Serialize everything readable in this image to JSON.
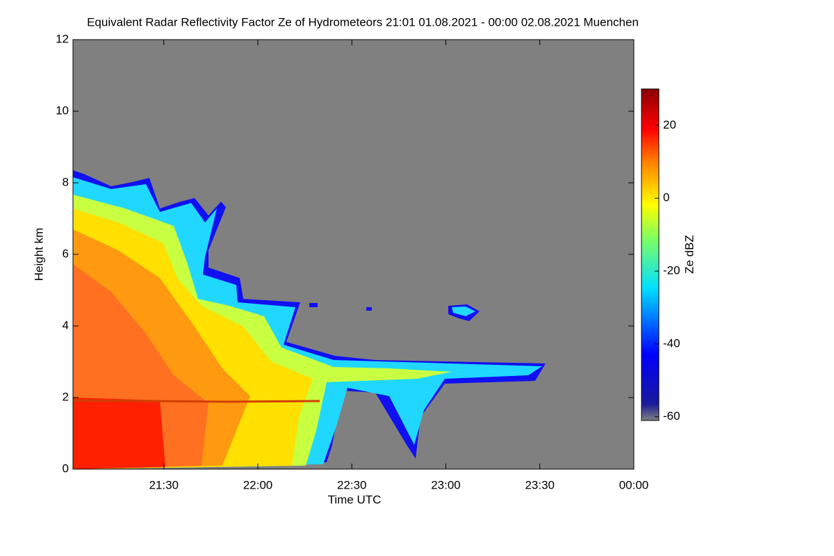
{
  "chart_data": {
    "type": "heatmap",
    "title": "Equivalent Radar Reflectivity Factor Ze of Hydrometeors   21:01 01.08.2021 - 00:00 02.08.2021 Muenchen",
    "xlabel": "Time UTC",
    "ylabel": "Height km",
    "colorbar_label": "Ze dBZ",
    "xlim": [
      1261,
      1440
    ],
    "xticks": [
      {
        "value": 1290,
        "label": "21:30"
      },
      {
        "value": 1320,
        "label": "22:00"
      },
      {
        "value": 1350,
        "label": "22:30"
      },
      {
        "value": 1380,
        "label": "23:00"
      },
      {
        "value": 1410,
        "label": "23:30"
      },
      {
        "value": 1440,
        "label": "00:00"
      }
    ],
    "ylim": [
      0,
      12
    ],
    "yticks": [
      0,
      2,
      4,
      6,
      8,
      10,
      12
    ],
    "clim": [
      -61,
      30
    ],
    "cticks": [
      20,
      0,
      -20,
      -40,
      -60
    ]
  }
}
